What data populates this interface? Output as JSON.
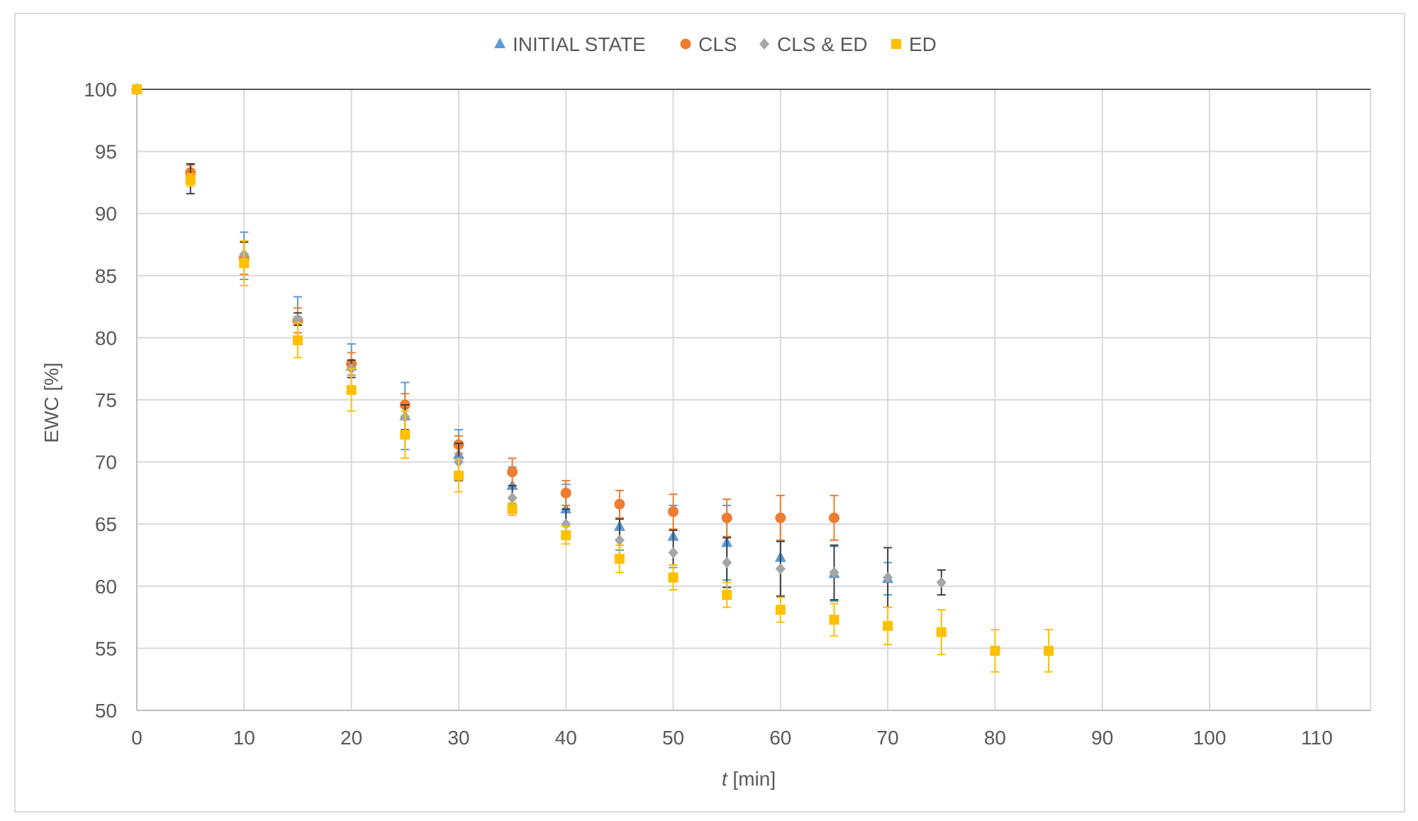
{
  "chart_data": {
    "type": "scatter",
    "title": "",
    "xlabel_italic": "t",
    "xlabel_rest": " [min]",
    "ylabel": "EWC [%]",
    "xlim": [
      0,
      115
    ],
    "ylim": [
      50,
      100
    ],
    "xticks": [
      0,
      10,
      20,
      30,
      40,
      50,
      60,
      70,
      80,
      90,
      100,
      110
    ],
    "yticks": [
      50,
      55,
      60,
      65,
      70,
      75,
      80,
      85,
      90,
      95,
      100
    ],
    "grid": true,
    "legend_position": "top-center",
    "series": [
      {
        "name": "INITIAL STATE",
        "marker": "triangle",
        "color": "#5b9bd5",
        "errcolor": "#5b9bd5",
        "x": [
          0,
          5,
          10,
          15,
          20,
          25,
          30,
          35,
          40,
          45,
          50,
          55,
          60,
          65,
          70
        ],
        "y": [
          100,
          93.3,
          86.6,
          81.5,
          77.7,
          73.7,
          70.6,
          68.1,
          66.2,
          64.8,
          64.0,
          63.5,
          62.3,
          61.0,
          60.6
        ],
        "err": [
          0,
          0.7,
          1.9,
          1.8,
          1.8,
          2.7,
          2.0,
          1.5,
          2.0,
          1.9,
          2.5,
          3.0,
          3.2,
          2.2,
          1.3
        ]
      },
      {
        "name": "CLS",
        "marker": "circle",
        "color": "#ed7d31",
        "errcolor": "#ed7d31",
        "x": [
          0,
          5,
          10,
          15,
          20,
          25,
          30,
          35,
          40,
          45,
          50,
          55,
          60,
          65
        ],
        "y": [
          100,
          93.3,
          86.4,
          81.4,
          77.9,
          74.6,
          71.4,
          69.2,
          67.5,
          66.6,
          66.0,
          65.5,
          65.5,
          65.5
        ],
        "err": [
          0,
          0.6,
          1.3,
          1.0,
          0.9,
          0.9,
          0.7,
          1.1,
          1.0,
          1.1,
          1.4,
          1.5,
          1.8,
          1.8
        ]
      },
      {
        "name": "CLS & ED",
        "marker": "diamond",
        "color": "#a5a5a5",
        "errcolor": "#404040",
        "x": [
          0,
          5,
          10,
          15,
          20,
          25,
          30,
          35,
          40,
          45,
          50,
          55,
          60,
          65,
          70,
          75
        ],
        "y": [
          100,
          92.8,
          86.7,
          81.5,
          77.5,
          73.6,
          70.0,
          67.1,
          65.0,
          63.7,
          62.7,
          61.9,
          61.4,
          61.1,
          60.7,
          60.3
        ],
        "err": [
          0,
          1.2,
          1.0,
          0.5,
          0.7,
          1.0,
          1.5,
          1.0,
          1.2,
          1.7,
          1.8,
          2.0,
          2.2,
          2.2,
          2.4,
          1.0
        ]
      },
      {
        "name": "ED",
        "marker": "square",
        "color": "#ffc000",
        "errcolor": "#ffc000",
        "x": [
          0,
          5,
          10,
          15,
          20,
          25,
          30,
          35,
          40,
          45,
          50,
          55,
          60,
          65,
          70,
          75,
          80,
          85
        ],
        "y": [
          100,
          92.7,
          86.0,
          79.8,
          75.8,
          72.2,
          68.9,
          66.2,
          64.1,
          62.2,
          60.7,
          59.3,
          58.1,
          57.3,
          56.8,
          56.3,
          54.8,
          54.8
        ],
        "err": [
          0,
          0.5,
          1.8,
          1.4,
          1.7,
          1.9,
          1.3,
          0.5,
          0.7,
          1.1,
          1.0,
          1.0,
          1.0,
          1.3,
          1.5,
          1.8,
          1.7,
          1.7
        ]
      }
    ]
  }
}
